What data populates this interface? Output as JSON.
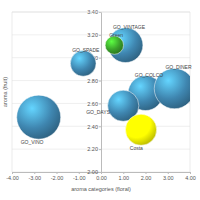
{
  "chart_data": {
    "type": "bubble",
    "x_label": "aroma categories (floral)",
    "y_label": "aroma (fruit)",
    "labels": [
      "GO_VINO",
      "GO_SPADE",
      "GO_VINTAGE",
      "Green",
      "GO_COLCO",
      "GO_DINER",
      "GO_DAYS",
      "Costa"
    ],
    "x": [
      -2.8,
      -0.8,
      1.1,
      0.6,
      2.0,
      3.3,
      1.0,
      1.8
    ],
    "y": [
      2.48,
      2.95,
      3.11,
      3.11,
      2.69,
      2.73,
      2.58,
      2.37
    ],
    "sizes": [
      24,
      14,
      19,
      10,
      19,
      22,
      17,
      17
    ],
    "colors": [
      "#3f86b0",
      "#3f86b0",
      "#3f86b0",
      "#3aa02a",
      "#3f86b0",
      "#3f86b0",
      "#3f86b0",
      "#ffff00"
    ],
    "xlim": [
      -4,
      4
    ],
    "xticks": [
      {
        "value": -4,
        "label": "-4.00"
      },
      {
        "value": -3,
        "label": "-3.00"
      },
      {
        "value": -2,
        "label": "-2.00"
      },
      {
        "value": -1,
        "label": "-1.00"
      },
      {
        "value": 0,
        "label": "0.00"
      },
      {
        "value": 1,
        "label": "1.00"
      },
      {
        "value": 2,
        "label": "2.00"
      },
      {
        "value": 3,
        "label": "3.00"
      },
      {
        "value": 4,
        "label": "4.00"
      }
    ],
    "ylim": [
      2.0,
      3.4
    ],
    "yticks": [
      {
        "value": 2.0,
        "label": "2.00"
      },
      {
        "value": 2.2,
        "label": "2.20"
      },
      {
        "value": 2.4,
        "label": "2.40"
      },
      {
        "value": 2.6,
        "label": "2.60"
      },
      {
        "value": 2.8,
        "label": "2.80"
      },
      {
        "value": 3.0,
        "label": "3.00"
      },
      {
        "value": 3.2,
        "label": "3.20"
      },
      {
        "value": 3.4,
        "label": "3.40"
      }
    ],
    "grid": true
  }
}
